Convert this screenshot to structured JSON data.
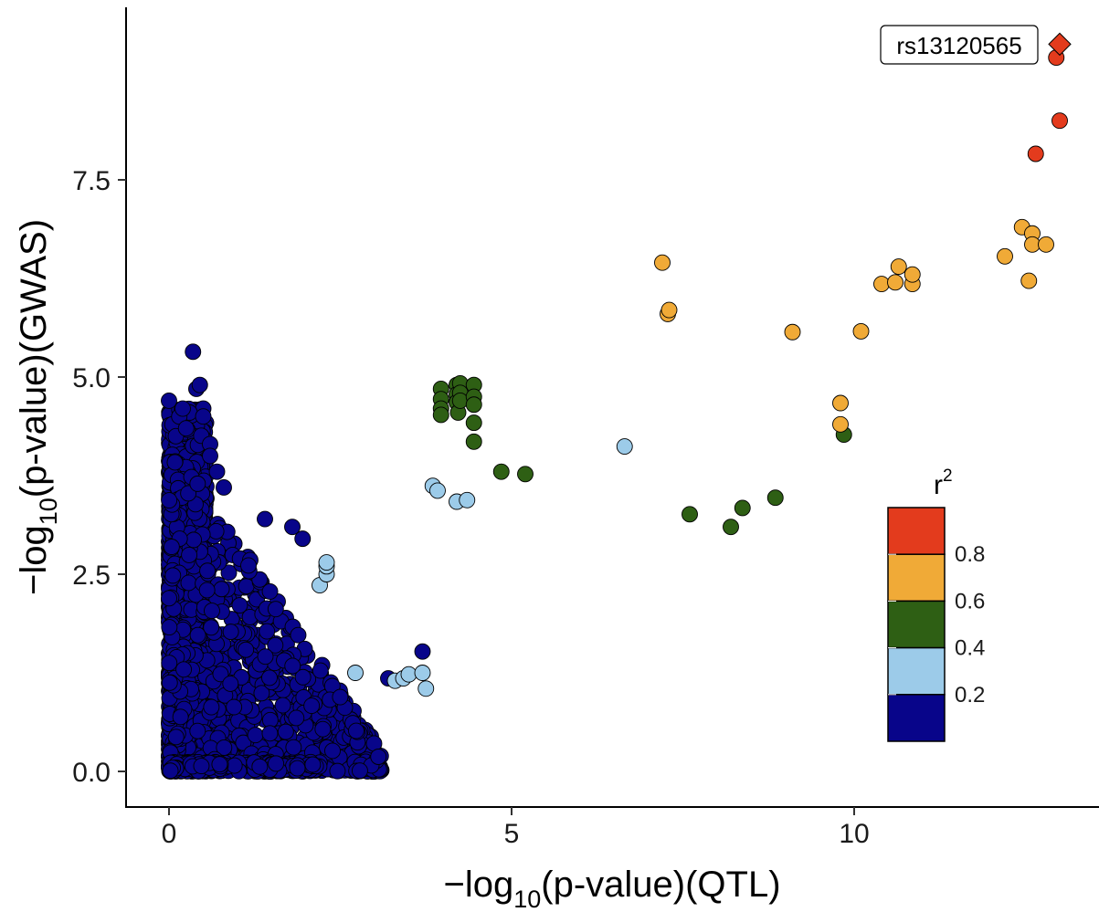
{
  "chart_data": {
    "type": "scatter",
    "xlabel": {
      "prefix": "−log",
      "sub": "10",
      "suffix": "(p-value)(QTL)"
    },
    "ylabel": {
      "prefix": "−log",
      "sub": "10",
      "suffix": "(p-value)(GWAS)"
    },
    "xlim": [
      -0.6,
      13.8
    ],
    "ylim": [
      -0.45,
      9.7
    ],
    "x_ticks": [
      {
        "value": 0,
        "label": "0"
      },
      {
        "value": 5,
        "label": "5"
      },
      {
        "value": 10,
        "label": "10"
      }
    ],
    "y_ticks": [
      {
        "value": 0,
        "label": "0.0"
      },
      {
        "value": 2.5,
        "label": "2.5"
      },
      {
        "value": 5,
        "label": "5.0"
      },
      {
        "value": 7.5,
        "label": "7.5"
      }
    ],
    "grid": false,
    "legend": {
      "title": "r",
      "title_sup": "2",
      "placement": "bottom-right",
      "bins": [
        {
          "color": "#e33b1d"
        },
        {
          "color": "#f0aa37"
        },
        {
          "color": "#2e5f14"
        },
        {
          "color": "#9ccbe9"
        },
        {
          "color": "#08058a"
        }
      ],
      "labels": [
        "0.8",
        "0.6",
        "0.4",
        "0.2"
      ]
    },
    "lead_snp": {
      "label": "rs13120565",
      "x": 13.0,
      "y": 9.22,
      "color": "#e33b1d",
      "shape": "diamond"
    },
    "series": [
      {
        "r2_bin": "0.8-1.0",
        "color": "#e33b1d",
        "x": [
          12.95,
          13.0,
          12.65
        ],
        "y": [
          9.05,
          8.25,
          7.83
        ]
      },
      {
        "r2_bin": "0.6-0.8",
        "color": "#f0aa37",
        "x": [
          7.2,
          7.28,
          7.3,
          9.1,
          9.8,
          9.8,
          10.1,
          10.4,
          10.6,
          10.65,
          10.85,
          10.85,
          12.2,
          12.45,
          12.6,
          12.6,
          12.8,
          12.55
        ],
        "y": [
          6.45,
          5.8,
          5.85,
          5.57,
          4.67,
          4.4,
          5.58,
          6.18,
          6.2,
          6.4,
          6.18,
          6.3,
          6.53,
          6.9,
          6.82,
          6.68,
          6.68,
          6.22
        ]
      },
      {
        "r2_bin": "0.4-0.6",
        "color": "#2e5f14",
        "x": [
          3.97,
          3.97,
          3.97,
          3.97,
          4.2,
          4.2,
          4.2,
          4.22,
          4.25,
          4.25,
          4.25,
          4.45,
          4.45,
          4.45,
          4.45,
          4.45,
          4.85,
          5.2,
          7.6,
          8.2,
          8.37,
          8.85,
          9.85
        ],
        "y": [
          4.85,
          4.72,
          4.6,
          4.52,
          4.9,
          4.78,
          4.68,
          4.55,
          4.92,
          4.8,
          4.7,
          4.9,
          4.75,
          4.65,
          4.42,
          4.18,
          3.8,
          3.77,
          3.26,
          3.1,
          3.34,
          3.47,
          4.27
        ]
      },
      {
        "r2_bin": "0.2-0.4",
        "color": "#9ccbe9",
        "x": [
          2.2,
          2.3,
          2.3,
          2.3,
          2.72,
          3.3,
          3.42,
          3.5,
          3.7,
          3.75,
          3.85,
          3.92,
          4.2,
          4.35,
          6.65
        ],
        "y": [
          2.36,
          2.5,
          2.6,
          2.65,
          1.25,
          1.15,
          1.18,
          1.23,
          1.25,
          1.05,
          3.62,
          3.56,
          3.42,
          3.44,
          4.12
        ]
      },
      {
        "r2_bin": "0.0-0.2",
        "color": "#08058a",
        "x": [
          0.35,
          0.4,
          0.45,
          0.5,
          0.3,
          0.6,
          1.4,
          1.8,
          1.95,
          3.7,
          3.2,
          0.0,
          0.05,
          0.1,
          0.15,
          0.2,
          0.25,
          0.5,
          0.6,
          0.7,
          0.8
        ],
        "y": [
          5.32,
          4.85,
          4.9,
          4.6,
          4.55,
          4.15,
          3.2,
          3.1,
          2.95,
          1.52,
          1.18,
          4.7,
          4.4,
          4.25,
          4.5,
          4.6,
          4.35,
          4.5,
          4.0,
          3.8,
          3.6
        ],
        "note": "plus a dense cloud of several thousand points in the lower-left region (x 0-3.4, y 0-4.7)"
      }
    ]
  }
}
